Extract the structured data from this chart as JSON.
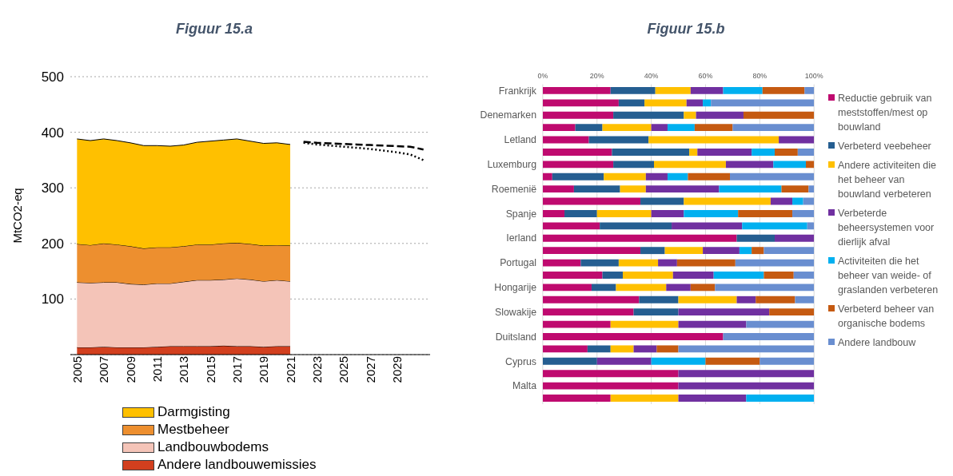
{
  "chart_data": [
    {
      "type": "area",
      "title": "Figuur 15.a",
      "ylabel": "MtCO2-eq",
      "x": [
        2005,
        2006,
        2007,
        2008,
        2009,
        2010,
        2011,
        2012,
        2013,
        2014,
        2015,
        2016,
        2017,
        2018,
        2019,
        2020,
        2021
      ],
      "stacked": true,
      "xlim": [
        2004.5,
        2031.5
      ],
      "xticks": [
        2005,
        2007,
        2009,
        2011,
        2013,
        2015,
        2017,
        2019,
        2021,
        2023,
        2025,
        2027,
        2029
      ],
      "ylim": [
        0,
        500
      ],
      "yticks": [
        100,
        200,
        300,
        400,
        500
      ],
      "grid": "y",
      "legend": "bottom",
      "marker": "none",
      "series": [
        {
          "name": "Andere landbouwemissies",
          "color": "#d23f1e",
          "values": [
            13,
            13,
            14,
            13,
            13,
            13,
            14,
            15,
            15,
            15,
            15,
            16,
            15,
            15,
            14,
            15,
            15
          ]
        },
        {
          "name": "Landbouwbodems",
          "color": "#f4c4b8",
          "values": [
            117,
            116,
            116,
            117,
            114,
            113,
            114,
            113,
            116,
            119,
            119,
            119,
            122,
            120,
            118,
            119,
            117
          ]
        },
        {
          "name": "Mestbeheer",
          "color": "#ed8f2f",
          "values": [
            69,
            68,
            70,
            68,
            68,
            65,
            65,
            65,
            64,
            64,
            64,
            65,
            64,
            64,
            64,
            63,
            64
          ]
        },
        {
          "name": "Darmgisting",
          "color": "#ffc000",
          "values": [
            189,
            188,
            188,
            187,
            186,
            185,
            183,
            182,
            182,
            184,
            186,
            186,
            187,
            185,
            184,
            184,
            182
          ]
        },
        {
          "type": "line",
          "color": "#000000",
          "line_style": "dashed",
          "x": [
            2022,
            2023,
            2024,
            2025,
            2026,
            2027,
            2028,
            2029,
            2030,
            2031
          ],
          "values": [
            383,
            381,
            380,
            379,
            378,
            377,
            376,
            375,
            374,
            369
          ]
        },
        {
          "type": "line",
          "color": "#000000",
          "line_style": "dotted",
          "x": [
            2022,
            2023,
            2024,
            2025,
            2026,
            2027,
            2028,
            2029,
            2030,
            2031
          ],
          "values": [
            381,
            378,
            376,
            374,
            372,
            370,
            367,
            364,
            360,
            350
          ]
        }
      ]
    },
    {
      "type": "bar",
      "title": "Figuur 15.b",
      "orientation": "horizontal",
      "stacked": true,
      "categories": [
        "Frankrijk",
        null,
        "Denemarken",
        null,
        "Letland",
        null,
        "Luxemburg",
        null,
        "Roemenië",
        null,
        "Spanje",
        null,
        "Ierland",
        null,
        "Portugal",
        null,
        "Hongarije",
        null,
        "Slowakije",
        null,
        "Duitsland",
        null,
        "Cyprus",
        null,
        "Malta",
        null
      ],
      "xlim": [
        0,
        100
      ],
      "xticks": [
        {
          "value": 0,
          "label": "0%"
        },
        {
          "value": 20,
          "label": "20%"
        },
        {
          "value": 40,
          "label": "40%"
        },
        {
          "value": 60,
          "label": "60%"
        },
        {
          "value": 80,
          "label": "80%"
        },
        {
          "value": 100,
          "label": "100%"
        }
      ],
      "grid": "x",
      "legend": "right",
      "series": [
        {
          "name": "Reductie gebruik van meststoffen/mest op bouwland",
          "color": "#bf0a6f",
          "values": [
            25,
            28,
            26,
            12,
            17,
            25.5,
            26,
            3.5,
            11.5,
            36,
            8,
            21,
            71.5,
            36,
            14,
            22,
            18,
            35.5,
            33.5,
            25,
            66.5,
            16.5,
            0,
            50,
            50,
            25
          ]
        },
        {
          "name": "Verbeterd veebeheer",
          "color": "#255e91",
          "values": [
            16.5,
            9.5,
            26,
            10,
            22,
            28.5,
            15,
            19,
            17,
            16,
            12,
            26.5,
            14,
            9,
            14,
            7.5,
            9,
            14.5,
            16.5,
            0,
            0,
            8.5,
            20,
            0,
            0,
            0
          ]
        },
        {
          "name": "Andere activiteiten die het beheer van bouwland verbeteren",
          "color": "#ffc000",
          "values": [
            13,
            15.5,
            4.5,
            18,
            48,
            3,
            26.5,
            15.5,
            9.5,
            32,
            20,
            0,
            0,
            14,
            14.5,
            18.5,
            18.5,
            21.5,
            0,
            25,
            0,
            8.5,
            0,
            0,
            0,
            25
          ]
        },
        {
          "name": "Verbeterde beheersystemen voor dierlijk afval",
          "color": "#7030a0",
          "values": [
            12,
            6,
            17.5,
            6,
            13,
            20,
            17.5,
            8,
            27,
            8,
            12,
            26,
            14.5,
            13.5,
            7,
            15,
            9,
            7,
            33.5,
            25,
            0,
            8.5,
            20,
            50,
            50,
            25
          ]
        },
        {
          "name": "Activiteiten die het beheer van weide- of graslanden verbeteren",
          "color": "#00b0f0",
          "values": [
            14.5,
            3,
            0,
            10,
            0,
            8.5,
            12,
            7.5,
            23,
            4,
            20,
            24,
            0,
            4.5,
            0,
            18.5,
            0,
            0,
            0,
            0,
            0,
            0,
            20,
            0,
            0,
            25
          ]
        },
        {
          "name": "Verbeterd beheer van organische bodems",
          "color": "#c55a11",
          "values": [
            15.5,
            0,
            26,
            14,
            0,
            8.5,
            3,
            15.5,
            10,
            0,
            20,
            0,
            0,
            4.5,
            21.5,
            11,
            9,
            14.5,
            16.5,
            0,
            0,
            8,
            20,
            0,
            0,
            0
          ]
        },
        {
          "name": "Andere landbouw",
          "color": "#698ed0",
          "values": [
            3.5,
            38,
            0,
            30,
            0,
            6,
            0,
            31,
            2,
            4,
            8,
            2.5,
            0,
            18.5,
            29,
            7.5,
            36.5,
            7,
            0,
            25,
            33.5,
            50,
            20,
            0,
            0,
            0
          ]
        }
      ]
    }
  ]
}
